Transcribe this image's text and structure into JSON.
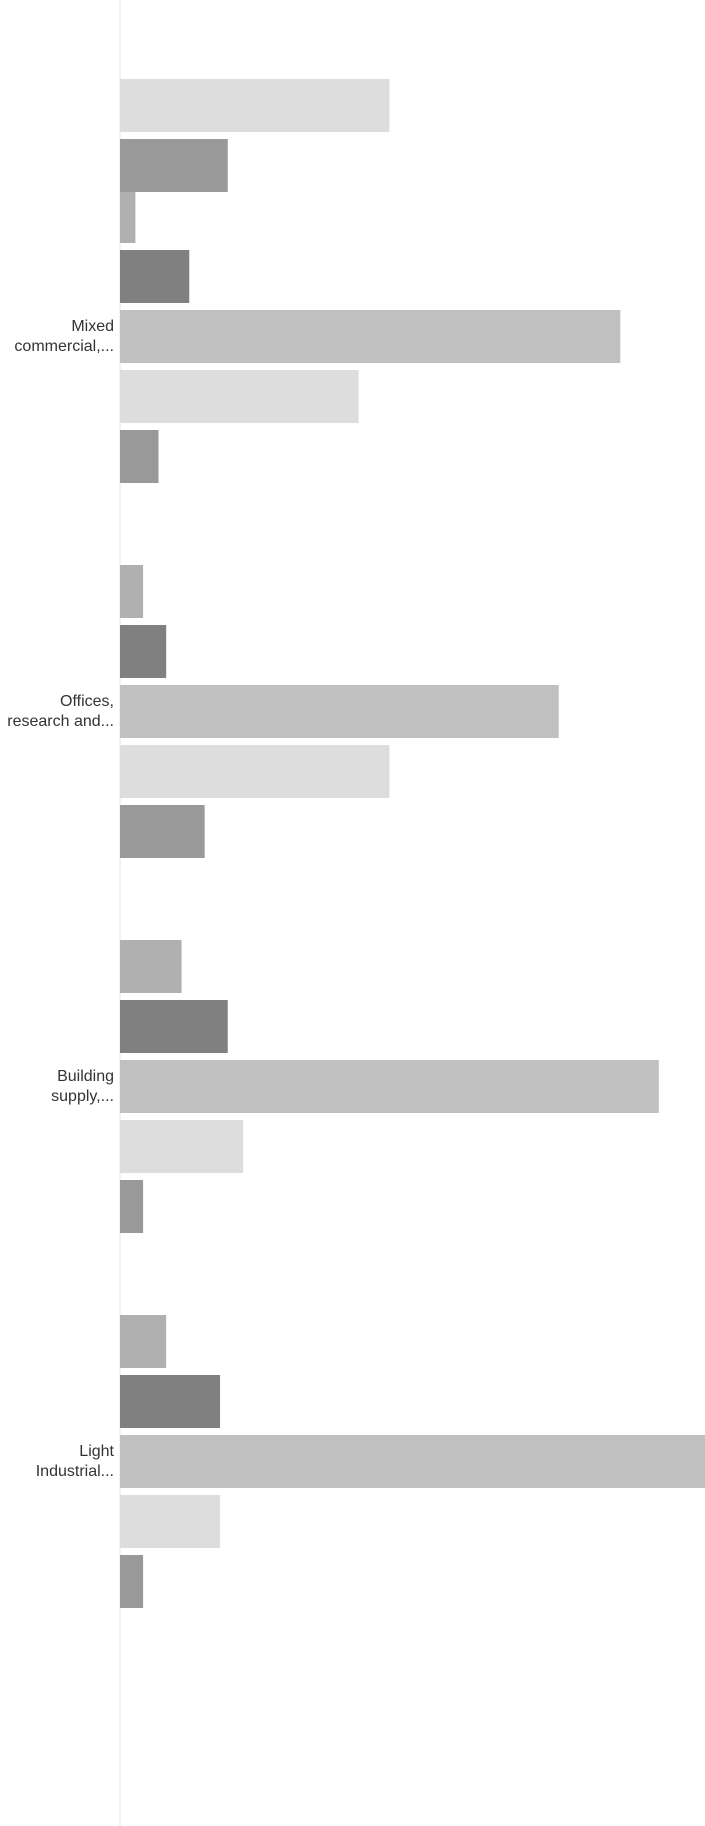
{
  "chart_data": {
    "type": "bar",
    "orientation": "horizontal",
    "grid": false,
    "legend": "none",
    "categories": [
      "",
      "Mixed commercial,...",
      "Offices, research and...",
      "Building supply,...",
      "Light Industrial..."
    ],
    "category_label_lines": [
      [],
      [
        "Mixed",
        "commercial,..."
      ],
      [
        "Offices,",
        "research and..."
      ],
      [
        "Building",
        "supply,..."
      ],
      [
        "Light",
        "Industrial..."
      ]
    ],
    "series": [
      {
        "values": [
          null,
          2,
          3,
          8,
          6
        ],
        "color": "#b0b0b0"
      },
      {
        "values": [
          null,
          9,
          6,
          14,
          13
        ],
        "color": "#808080"
      },
      {
        "values": [
          null,
          65,
          57,
          70,
          76
        ],
        "color": "#c0c0c0"
      },
      {
        "values": [
          35,
          31,
          35,
          16,
          13
        ],
        "color": "#dddddd"
      },
      {
        "values": [
          14,
          5,
          11,
          3,
          3
        ],
        "color": "#999999"
      }
    ],
    "xlim": [
      0,
      76
    ]
  }
}
